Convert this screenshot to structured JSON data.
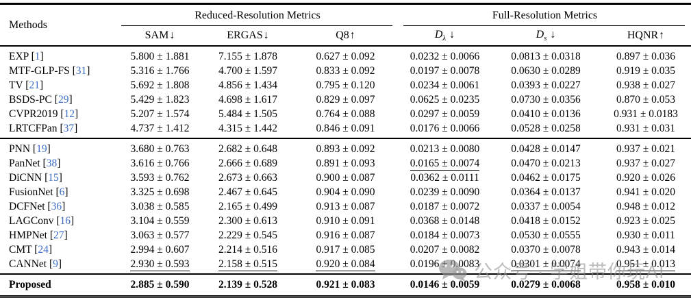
{
  "header": {
    "methods": "Methods",
    "groups": [
      {
        "label": "Reduced-Resolution Metrics"
      },
      {
        "label": "Full-Resolution Metrics"
      }
    ],
    "columns": [
      {
        "name": "SAM",
        "sub": "",
        "arrow": "↓"
      },
      {
        "name": "ERGAS",
        "sub": "",
        "arrow": "↓"
      },
      {
        "name": "Q8",
        "sub": "",
        "arrow": "↑"
      },
      {
        "name": "D",
        "sub": "λ",
        "arrow": "↓"
      },
      {
        "name": "D",
        "sub": "s",
        "arrow": "↓"
      },
      {
        "name": "HQNR",
        "sub": "",
        "arrow": "↑"
      }
    ]
  },
  "groups": [
    {
      "rows": [
        {
          "method": "EXP",
          "cite": "1",
          "cells": [
            "5.800 ± 1.881",
            "7.155 ± 1.878",
            "0.627 ± 0.092",
            "0.0232 ± 0.0066",
            "0.0813 ± 0.0318",
            "0.897 ± 0.036"
          ]
        },
        {
          "method": "MTF-GLP-FS",
          "cite": "31",
          "cells": [
            "5.316 ± 1.766",
            "4.700 ± 1.597",
            "0.833 ± 0.092",
            "0.0197 ± 0.0078",
            "0.0630 ± 0.0289",
            "0.919 ± 0.035"
          ]
        },
        {
          "method": "TV",
          "cite": "21",
          "cells": [
            "5.692 ± 1.808",
            "4.856 ± 1.434",
            "0.795 ± 0.120",
            "0.0234 ± 0.0061",
            "0.0393 ± 0.0227",
            "0.938 ± 0.027"
          ]
        },
        {
          "method": "BSDS-PC",
          "cite": "29",
          "cells": [
            "5.429 ± 1.823",
            "4.698 ± 1.617",
            "0.829 ± 0.097",
            "0.0625 ± 0.0235",
            "0.0730 ± 0.0356",
            "0.870 ± 0.053"
          ]
        },
        {
          "method": "CVPR2019",
          "cite": "12",
          "cells": [
            "5.207 ± 1.574",
            "5.484 ± 1.505",
            "0.764 ± 0.088",
            "0.0297 ± 0.0059",
            "0.0410 ± 0.0136",
            "0.931 ± 0.0183"
          ]
        },
        {
          "method": "LRTCFPan",
          "cite": "37",
          "cells": [
            "4.737 ± 1.412",
            "4.315 ± 1.442",
            "0.846 ± 0.091",
            "0.0176 ± 0.0066",
            "0.0528 ± 0.0258",
            "0.931 ± 0.031"
          ]
        }
      ]
    },
    {
      "rows": [
        {
          "method": "PNN",
          "cite": "19",
          "cells": [
            "3.680 ± 0.763",
            "2.682 ± 0.648",
            "0.893 ± 0.092",
            "0.0213 ± 0.0080",
            "0.0428 ± 0.0147",
            "0.937 ± 0.021"
          ]
        },
        {
          "method": "PanNet",
          "cite": "38",
          "cells": [
            "3.616 ± 0.766",
            "2.666 ± 0.689",
            "0.891 ± 0.093",
            "0.0165 ± 0.0074",
            "0.0470 ± 0.0213",
            "0.937 ± 0.027"
          ],
          "underline": [
            false,
            false,
            false,
            true,
            false,
            false
          ]
        },
        {
          "method": "DiCNN",
          "cite": "15",
          "cells": [
            "3.593 ± 0.762",
            "2.673 ± 0.663",
            "0.900 ± 0.087",
            "0.0362 ± 0.0111",
            "0.0462 ± 0.0175",
            "0.920 ± 0.026"
          ]
        },
        {
          "method": "FusionNet",
          "cite": "6",
          "cells": [
            "3.325 ± 0.698",
            "2.467 ± 0.645",
            "0.904 ± 0.090",
            "0.0239 ± 0.0090",
            "0.0364 ± 0.0137",
            "0.941 ± 0.020"
          ]
        },
        {
          "method": "DCFNet",
          "cite": "36",
          "cells": [
            "3.038 ± 0.585",
            "2.165 ± 0.499",
            "0.913 ± 0.087",
            "0.0187 ± 0.0072",
            "0.0337 ± 0.0054",
            "0.948 ± 0.012"
          ]
        },
        {
          "method": "LAGConv",
          "cite": "16",
          "cells": [
            "3.104 ± 0.559",
            "2.300 ± 0.613",
            "0.910 ± 0.091",
            "0.0368 ± 0.0148",
            "0.0418 ± 0.0152",
            "0.923 ± 0.025"
          ]
        },
        {
          "method": "HMPNet",
          "cite": "27",
          "cells": [
            "3.063 ± 0.577",
            "2.229 ± 0.545",
            "0.916 ± 0.087",
            "0.0184 ± 0.0073",
            "0.0530 ± 0.0555",
            "0.930 ± 0.011"
          ]
        },
        {
          "method": "CMT",
          "cite": "24",
          "cells": [
            "2.994 ± 0.607",
            "2.214 ± 0.516",
            "0.917 ± 0.085",
            "0.0207 ± 0.0082",
            "0.0370 ± 0.0078",
            "0.943 ± 0.014"
          ]
        },
        {
          "method": "CANNet",
          "cite": "9",
          "cells": [
            "2.930 ± 0.593",
            "2.158 ± 0.515",
            "0.920 ± 0.084",
            "0.0196 ± 0.0083",
            "0.0301 ± 0.0074",
            "0.951 ± 0.013"
          ],
          "underline": [
            true,
            true,
            true,
            false,
            true,
            true
          ]
        }
      ]
    },
    {
      "rows": [
        {
          "method": "Proposed",
          "cite": "",
          "cells": [
            "2.885 ± 0.590",
            "2.139 ± 0.528",
            "0.921 ± 0.083",
            "0.0146 ± 0.0059",
            "0.0279 ± 0.0068",
            "0.958 ± 0.010"
          ],
          "bold": true
        }
      ]
    }
  ],
  "watermark": {
    "icon": "wechat-icon",
    "text": "公众号 · 学姐带你玩AI"
  },
  "colors": {
    "citation_blue": "#3b6bc6",
    "rule_black": "#000000",
    "watermark_gray": "#919191"
  }
}
